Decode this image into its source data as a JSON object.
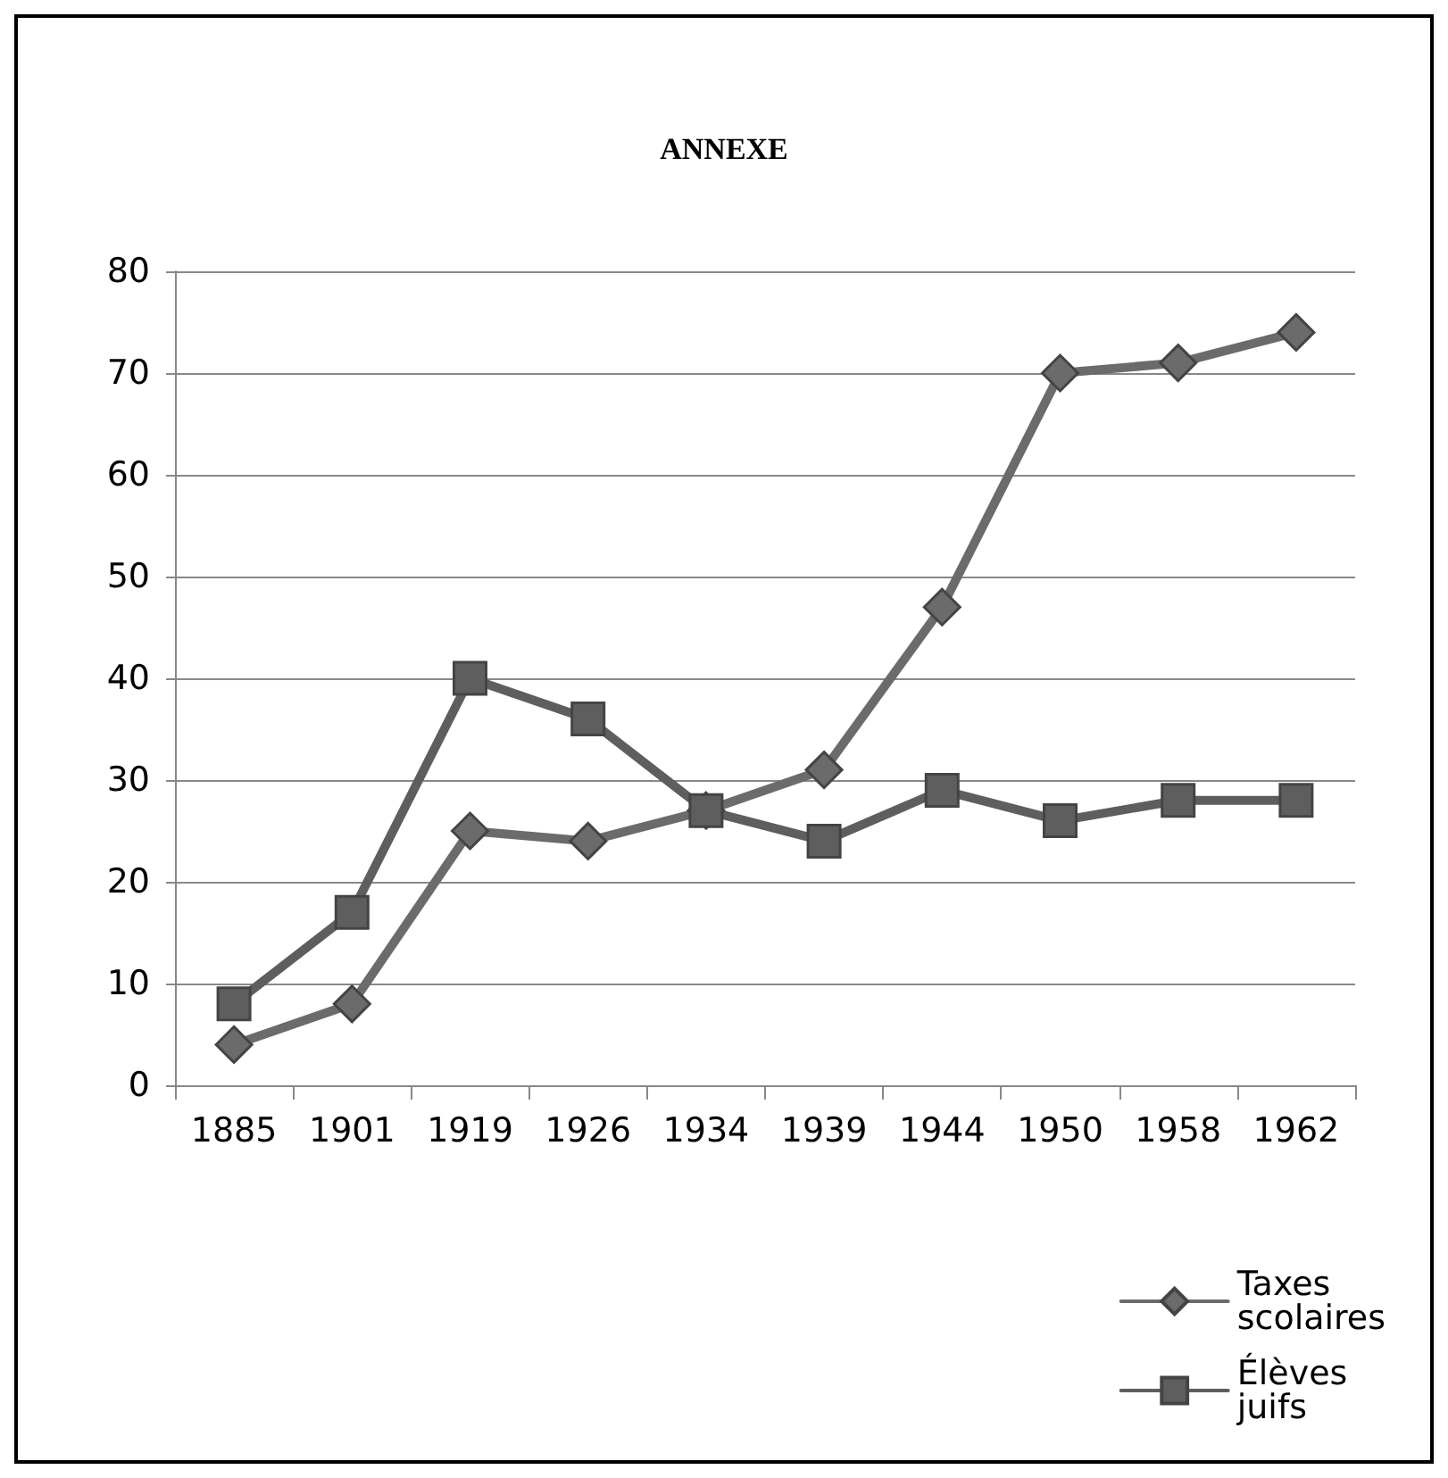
{
  "chart_data": {
    "type": "line",
    "title": "ANNEXE",
    "categories": [
      "1885",
      "1901",
      "1919",
      "1926",
      "1934",
      "1939",
      "1944",
      "1950",
      "1958",
      "1962"
    ],
    "series": [
      {
        "name": "Taxes scolaires",
        "color": "#6b6b6b",
        "marker": "diamond",
        "values": [
          4,
          8,
          25,
          24,
          27,
          31,
          47,
          70,
          71,
          74
        ]
      },
      {
        "name": "Élèves juifs",
        "color": "#5e5e5e",
        "marker": "square",
        "values": [
          8,
          17,
          40,
          36,
          27,
          24,
          29,
          26,
          28,
          28
        ]
      }
    ],
    "ylim": [
      0,
      80
    ],
    "yticks": [
      0,
      10,
      20,
      30,
      40,
      50,
      60,
      70,
      80
    ],
    "grid": "y",
    "legend": "bottom right"
  }
}
